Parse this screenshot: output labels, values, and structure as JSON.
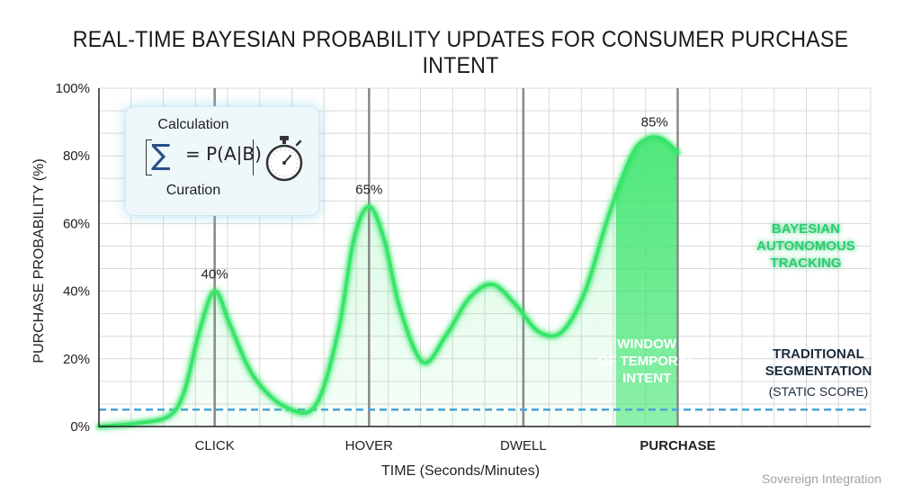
{
  "chart_data": {
    "type": "line",
    "title": "REAL-TIME BAYESIAN PROBABILITY UPDATES FOR CONSUMER PURCHASE INTENT",
    "xlabel": "TIME (Seconds/Minutes)",
    "ylabel": "PURCHASE PROBABILITY (%)",
    "ylim": [
      0,
      100
    ],
    "y_ticks": [
      "0%",
      "20%",
      "40%",
      "60%",
      "80%",
      "100%"
    ],
    "x_range": [
      0,
      10
    ],
    "events": [
      {
        "x": 1.5,
        "label": "CLICK",
        "bold": false
      },
      {
        "x": 3.5,
        "label": "HOVER",
        "bold": false
      },
      {
        "x": 5.5,
        "label": "DWELL",
        "bold": false
      },
      {
        "x": 7.5,
        "label": "PURCHASE",
        "bold": true
      }
    ],
    "series": [
      {
        "name": "BAYESIAN AUTONOMOUS TRACKING",
        "color": "#39e56b",
        "x": [
          0,
          0.5,
          0.9,
          1.1,
          1.3,
          1.5,
          1.7,
          2.0,
          2.4,
          2.8,
          3.1,
          3.3,
          3.5,
          3.7,
          3.9,
          4.2,
          4.5,
          4.8,
          5.1,
          5.4,
          5.7,
          6.0,
          6.3,
          6.6,
          6.9,
          7.1,
          7.3,
          7.5
        ],
        "values": [
          0,
          1,
          3,
          10,
          28,
          40,
          30,
          15,
          6,
          6,
          28,
          55,
          65,
          55,
          35,
          19,
          27,
          38,
          42,
          36,
          28,
          28,
          40,
          62,
          80,
          85,
          85,
          81
        ]
      },
      {
        "name": "TRADITIONAL SEGMENTATION",
        "color": "#4aa3d8",
        "style": "dashed",
        "x": [
          0,
          10
        ],
        "values": [
          5,
          5
        ]
      }
    ],
    "peaks": [
      {
        "x": 1.5,
        "y": 40,
        "label": "40%"
      },
      {
        "x": 3.5,
        "y": 65,
        "label": "65%"
      },
      {
        "x": 7.2,
        "y": 85,
        "label": "85%"
      }
    ],
    "window": {
      "x_start": 6.7,
      "x_end": 7.5,
      "label_lines": [
        "WINDOW",
        "OF TEMPORAL",
        "INTENT"
      ]
    },
    "annotations": {
      "bayesian": [
        "BAYESIAN",
        "AUTONOMOUS",
        "TRACKING"
      ],
      "traditional": [
        "TRADITIONAL",
        "SEGMENTATION"
      ],
      "traditional_sub": "(STATIC SCORE)"
    },
    "grid": true
  },
  "formula": {
    "top": "Calculation",
    "equation": "= P(A|B)",
    "bottom": "Curation",
    "icon": "stopwatch-icon"
  },
  "watermark": "Sovereign Integration",
  "colors": {
    "accent_green": "#39e56b",
    "static_blue": "#4aa3d8",
    "event_line": "#888888"
  }
}
